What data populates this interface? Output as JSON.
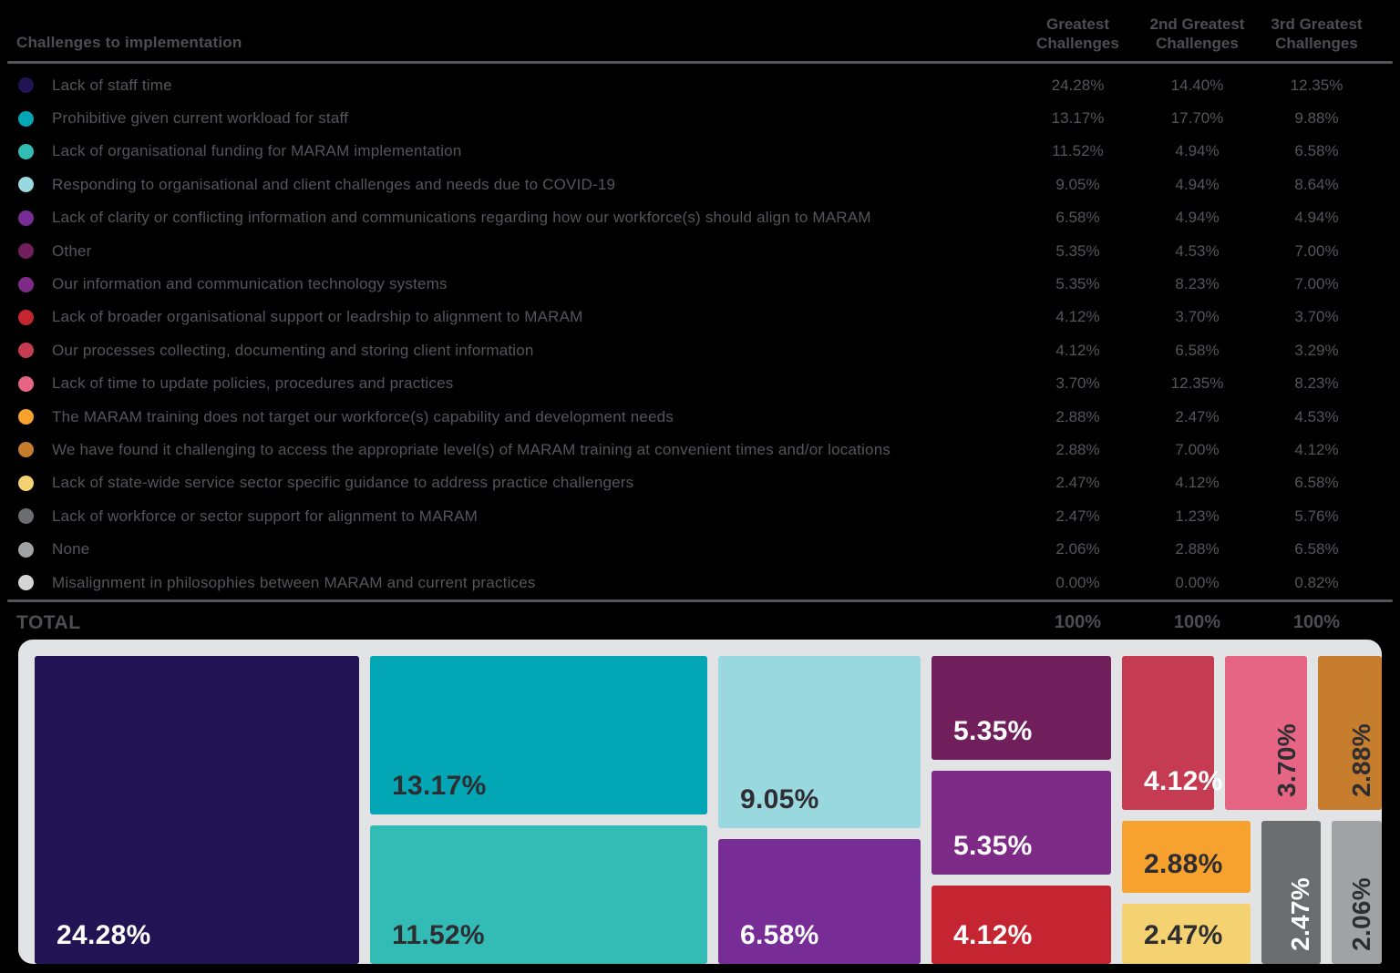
{
  "header": {
    "title": "Challenges to implementation",
    "columns": [
      "Greatest Challenges",
      "2nd Greatest Challenges",
      "3rd Greatest Challenges"
    ]
  },
  "rows": [
    {
      "label": "Lack of staff time",
      "color": "#221454",
      "values": [
        "24.28%",
        "14.40%",
        "12.35%"
      ]
    },
    {
      "label": "Prohibitive given current workload for staff",
      "color": "#03a6b4",
      "values": [
        "13.17%",
        "17.70%",
        "9.88%"
      ]
    },
    {
      "label": "Lack of organisational funding for MARAM implementation",
      "color": "#33bcb5",
      "values": [
        "11.52%",
        "4.94%",
        "6.58%"
      ]
    },
    {
      "label": "Responding to organisational and client challenges and needs due to COVID-19",
      "color": "#99d8de",
      "values": [
        "9.05%",
        "4.94%",
        "8.64%"
      ]
    },
    {
      "label": "Lack of clarity or conflicting information and communications regarding how our workforce(s) should align to MARAM",
      "color": "#772d95",
      "values": [
        "6.58%",
        "4.94%",
        "4.94%"
      ]
    },
    {
      "label": "Other",
      "color": "#701e5c",
      "values": [
        "5.35%",
        "4.53%",
        "7.00%"
      ]
    },
    {
      "label": "Our information and communication technology systems",
      "color": "#7e2b88",
      "values": [
        "5.35%",
        "8.23%",
        "7.00%"
      ]
    },
    {
      "label": "Lack of broader organisational support or leadrship to alignment to MARAM",
      "color": "#c42531",
      "values": [
        "4.12%",
        "3.70%",
        "3.70%"
      ]
    },
    {
      "label": "Our processes collecting, documenting and storing client information",
      "color": "#c53b51",
      "values": [
        "4.12%",
        "6.58%",
        "3.29%"
      ]
    },
    {
      "label": "Lack of time to update policies, procedures and practices",
      "color": "#e66584",
      "values": [
        "3.70%",
        "12.35%",
        "8.23%"
      ]
    },
    {
      "label": "The MARAM training does not target our workforce(s) capability and development needs",
      "color": "#f7a12f",
      "values": [
        "2.88%",
        "2.47%",
        "4.53%"
      ]
    },
    {
      "label": "We have found it challenging to access the appropriate level(s) of MARAM training at convenient times and/or locations",
      "color": "#c77d2e",
      "values": [
        "2.88%",
        "7.00%",
        "4.12%"
      ]
    },
    {
      "label": "Lack of state-wide service sector specific guidance to address practice challengers",
      "color": "#f5d271",
      "values": [
        "2.47%",
        "4.12%",
        "6.58%"
      ]
    },
    {
      "label": "Lack of workforce or sector support for alignment to MARAM",
      "color": "#6b6d71",
      "values": [
        "2.47%",
        "1.23%",
        "5.76%"
      ]
    },
    {
      "label": "None",
      "color": "#a0a2a5",
      "values": [
        "2.06%",
        "2.88%",
        "6.58%"
      ]
    },
    {
      "label": "Misalignment in philosophies between MARAM and current practices",
      "color": "#d4d5d7",
      "values": [
        "0.00%",
        "0.00%",
        "0.82%"
      ]
    }
  ],
  "total": {
    "label": "TOTAL",
    "values": [
      "100%",
      "100%",
      "100%"
    ]
  },
  "chart_data": {
    "type": "treemap",
    "title": "Challenges to implementation",
    "categories": [
      "Lack of staff time",
      "Prohibitive given current workload for staff",
      "Lack of organisational funding for MARAM implementation",
      "Responding to organisational and client challenges and needs due to COVID-19",
      "Lack of clarity or conflicting information and communications regarding how our workforce(s) should align to MARAM",
      "Other",
      "Our information and communication technology systems",
      "Lack of broader organisational support or leadrship to alignment to MARAM",
      "Our processes collecting, documenting and storing client information",
      "Lack of time to update policies, procedures and practices",
      "The MARAM training does not target our workforce(s) capability and development needs",
      "We have found it challenging to access the appropriate level(s) of MARAM training at convenient times and/or locations",
      "Lack of state-wide service sector specific guidance to address practice challengers",
      "Lack of workforce or sector support for alignment to MARAM",
      "None",
      "Misalignment in philosophies between MARAM and current practices"
    ],
    "series": [
      {
        "name": "Greatest Challenges",
        "values": [
          24.28,
          13.17,
          11.52,
          9.05,
          6.58,
          5.35,
          5.35,
          4.12,
          4.12,
          3.7,
          2.88,
          2.88,
          2.47,
          2.47,
          2.06,
          0.0
        ]
      },
      {
        "name": "2nd Greatest Challenges",
        "values": [
          14.4,
          17.7,
          4.94,
          4.94,
          4.94,
          4.53,
          8.23,
          3.7,
          6.58,
          12.35,
          2.47,
          7.0,
          4.12,
          1.23,
          2.88,
          0.0
        ]
      },
      {
        "name": "3rd Greatest Challenges",
        "values": [
          12.35,
          9.88,
          6.58,
          8.64,
          4.94,
          7.0,
          7.0,
          3.7,
          3.29,
          8.23,
          4.53,
          4.12,
          6.58,
          5.76,
          6.58,
          0.82
        ]
      }
    ],
    "treemap_series_shown": "Greatest Challenges",
    "totals": [
      100,
      100,
      100
    ],
    "colors": [
      "#221454",
      "#03a6b4",
      "#33bcb5",
      "#99d8de",
      "#772d95",
      "#701e5c",
      "#7e2b88",
      "#c42531",
      "#c53b51",
      "#e66584",
      "#f7a12f",
      "#c77d2e",
      "#f5d271",
      "#6b6d71",
      "#a0a2a5",
      "#d4d5d7"
    ],
    "frame_color": "#e2e3e4",
    "text_color": "#54565b"
  }
}
